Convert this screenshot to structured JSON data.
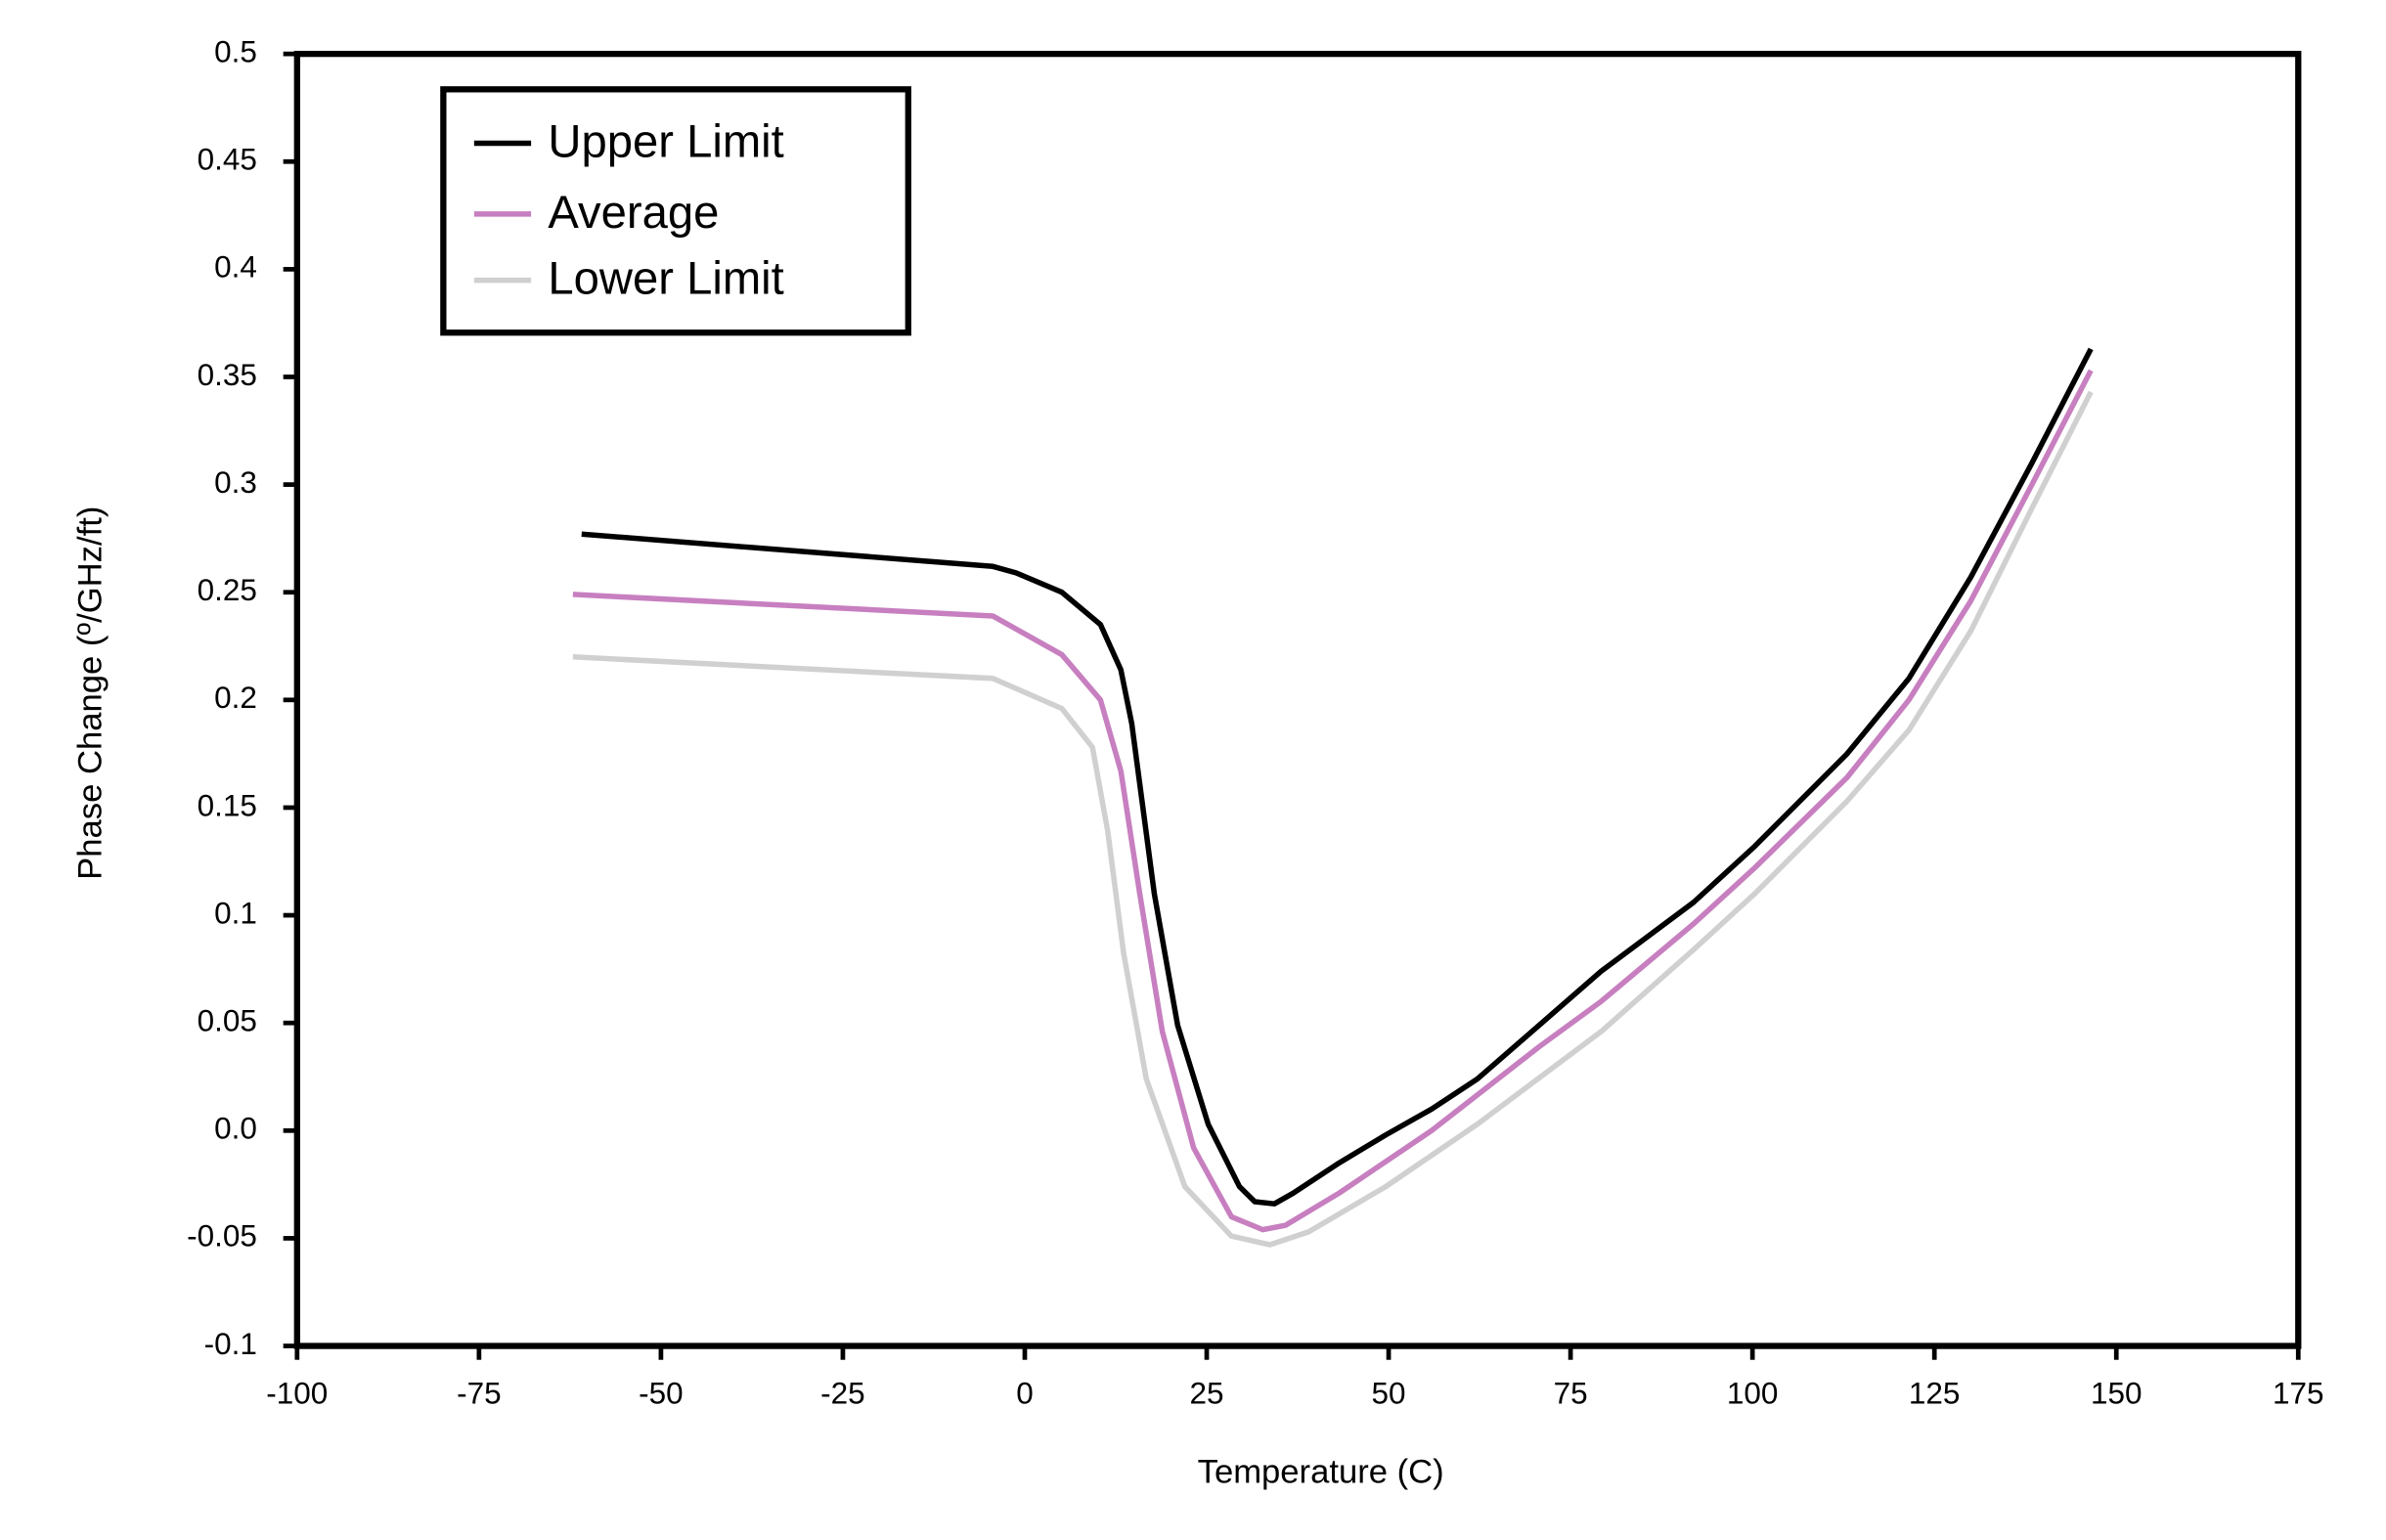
{
  "chart_data": {
    "type": "line",
    "x_label": "Temperature (C)",
    "y_label": "Phase Change (º/GHz/ft)",
    "xlim": [
      -100,
      175
    ],
    "xticks": [
      -100,
      -75,
      -50,
      -25,
      0,
      25,
      50,
      75,
      100,
      125,
      150,
      175
    ],
    "ylim": [
      -0.1,
      0.5
    ],
    "yticks": [
      -0.1,
      -0.05,
      {
        "value": 0,
        "label": "0.0"
      },
      0.05,
      0.1,
      0.15,
      0.2,
      0.25,
      0.3,
      0.35,
      0.4,
      0.45,
      0.5
    ],
    "legend": "upper left",
    "series": [
      {
        "name": "Upper Limit",
        "color": "#000000",
        "x": [
          -60.9,
          -4.4,
          -1.2,
          5.1,
          10.4,
          13.2,
          14.7,
          17.8,
          21,
          25.2,
          29.5,
          31.6,
          34.3,
          36.9,
          43.2,
          49.6,
          55.9,
          62.2,
          70.7,
          79.2,
          91.9,
          100.3,
          113,
          121.5,
          130,
          138.4,
          146.5
        ],
        "values": [
          0.277,
          0.262,
          0.259,
          0.25,
          0.235,
          0.214,
          0.189,
          0.11,
          0.049,
          0.003,
          -0.026,
          -0.033,
          -0.034,
          -0.029,
          -0.015,
          -0.002,
          0.01,
          0.024,
          0.049,
          0.074,
          0.106,
          0.132,
          0.175,
          0.21,
          0.257,
          0.31,
          0.363
        ]
      },
      {
        "name": "Average",
        "color": "#c77fc0",
        "x": [
          -62.1,
          -4.4,
          5.1,
          10.4,
          13.2,
          15.8,
          18.9,
          23.2,
          28.4,
          32.7,
          35.8,
          43.2,
          55.9,
          70.7,
          79.2,
          91.9,
          100.3,
          113,
          121.5,
          130,
          138.4,
          146.5
        ],
        "values": [
          0.249,
          0.239,
          0.221,
          0.2,
          0.167,
          0.11,
          0.046,
          -0.008,
          -0.04,
          -0.046,
          -0.044,
          -0.029,
          0.0,
          0.039,
          0.06,
          0.096,
          0.122,
          0.164,
          0.2,
          0.246,
          0.3,
          0.353
        ]
      },
      {
        "name": "Lower Limit",
        "color": "#d0d0d0",
        "x": [
          -62.1,
          -4.4,
          5.1,
          9.3,
          11.4,
          13.6,
          16.7,
          22,
          28.4,
          33.7,
          39,
          49.6,
          62.2,
          79.2,
          91.9,
          100.3,
          113,
          121.5,
          130,
          138.4,
          146.5
        ],
        "values": [
          0.22,
          0.21,
          0.196,
          0.178,
          0.139,
          0.082,
          0.024,
          -0.026,
          -0.049,
          -0.053,
          -0.047,
          -0.026,
          0.003,
          0.046,
          0.084,
          0.11,
          0.153,
          0.186,
          0.232,
          0.289,
          0.343
        ]
      }
    ]
  }
}
